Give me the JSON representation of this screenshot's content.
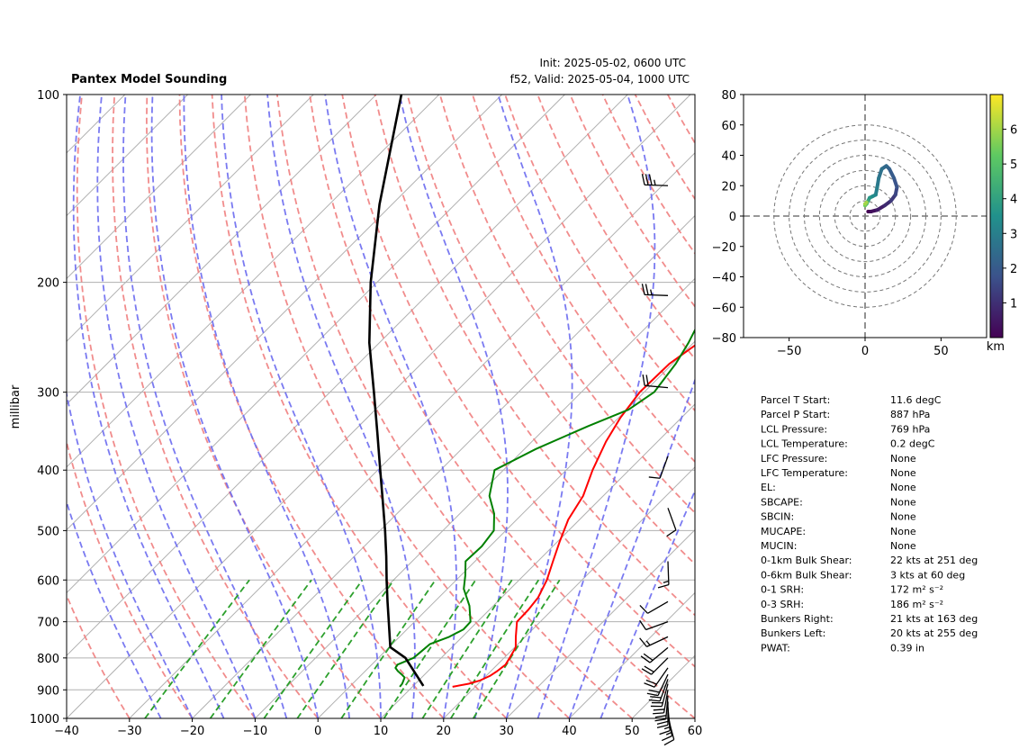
{
  "header": {
    "title": "Pantex Model Sounding",
    "init": "Init: 2025-05-02, 0600 UTC",
    "valid": "f52, Valid: 2025-05-04, 1000 UTC"
  },
  "colors": {
    "temperature": "#ff0000",
    "dewpoint": "#008000",
    "parcel": "#000000",
    "dry_adiabat": "#f08080",
    "moist_adiabat": "#6b6bf0",
    "mixing_ratio": "#2ca02c",
    "isotherm": "#b0b0b0"
  },
  "chart_data": [
    {
      "type": "line",
      "chart": "skew-t log-p sounding",
      "ylabel": "millibar",
      "xlim": [
        -40,
        60
      ],
      "ylim": [
        1000,
        100
      ],
      "y_scale": "log",
      "x_ticks": [
        "−40",
        "−30",
        "−20",
        "−10",
        "0",
        "10",
        "20",
        "30",
        "40",
        "50",
        "60"
      ],
      "y_ticks": [
        "100",
        "200",
        "300",
        "400",
        "500",
        "600",
        "700",
        "800",
        "900",
        "1000"
      ],
      "grid": true,
      "series": [
        {
          "id": "temperature",
          "points": [
            [
              890,
              16.4
            ],
            [
              880,
              18.5
            ],
            [
              870,
              19.7
            ],
            [
              855,
              20.6
            ],
            [
              840,
              21.0
            ],
            [
              820,
              21.3
            ],
            [
              800,
              20.9
            ],
            [
              770,
              20.2
            ],
            [
              740,
              18.5
            ],
            [
              700,
              16.3
            ],
            [
              670,
              16.2
            ],
            [
              640,
              15.8
            ],
            [
              600,
              14.4
            ],
            [
              560,
              12.4
            ],
            [
              520,
              10.3
            ],
            [
              480,
              8.2
            ],
            [
              440,
              6.8
            ],
            [
              400,
              4.2
            ],
            [
              360,
              1.8
            ],
            [
              330,
              0.3
            ],
            [
              300,
              -0.7
            ],
            [
              270,
              -0.5
            ],
            [
              250,
              0.8
            ],
            [
              220,
              3.9
            ],
            [
              200,
              7.3
            ],
            [
              180,
              11.0
            ],
            [
              160,
              15.9
            ],
            [
              140,
              21.7
            ],
            [
              120,
              29.7
            ],
            [
              100,
              39.3
            ]
          ]
        },
        {
          "id": "dewpoint",
          "points": [
            [
              890,
              8.0
            ],
            [
              880,
              7.9
            ],
            [
              860,
              7.3
            ],
            [
              850,
              6.3
            ],
            [
              840,
              5.2
            ],
            [
              830,
              4.3
            ],
            [
              820,
              4.1
            ],
            [
              800,
              5.6
            ],
            [
              780,
              5.8
            ],
            [
              760,
              6.0
            ],
            [
              740,
              7.9
            ],
            [
              720,
              9.0
            ],
            [
              700,
              8.9
            ],
            [
              660,
              6.2
            ],
            [
              620,
              2.6
            ],
            [
              590,
              0.7
            ],
            [
              560,
              -1.5
            ],
            [
              530,
              -1.3
            ],
            [
              500,
              -1.9
            ],
            [
              470,
              -4.5
            ],
            [
              440,
              -8.1
            ],
            [
              400,
              -11.4
            ],
            [
              370,
              -8.2
            ],
            [
              340,
              -3.5
            ],
            [
              320,
              0.3
            ],
            [
              300,
              1.6
            ],
            [
              270,
              0.5
            ],
            [
              250,
              -0.8
            ],
            [
              220,
              -3.5
            ],
            [
              200,
              -3.6
            ],
            [
              180,
              -4.0
            ],
            [
              160,
              -2.1
            ],
            [
              140,
              0.6
            ],
            [
              120,
              4.8
            ],
            [
              100,
              10.0
            ]
          ]
        },
        {
          "id": "parcel",
          "points": [
            [
              887,
              11.6
            ],
            [
              850,
              8.6
            ],
            [
              800,
              4.3
            ],
            [
              769,
              0.2
            ],
            [
              700,
              -4.1
            ],
            [
              650,
              -7.5
            ],
            [
              600,
              -11.1
            ],
            [
              550,
              -14.9
            ],
            [
              500,
              -19.2
            ],
            [
              450,
              -24.1
            ],
            [
              400,
              -29.6
            ],
            [
              350,
              -35.8
            ],
            [
              300,
              -43.0
            ],
            [
              250,
              -51.6
            ],
            [
              200,
              -61.0
            ],
            [
              150,
              -72.0
            ],
            [
              100,
              -86.0
            ]
          ]
        }
      ],
      "wind_barbs": [
        {
          "p": 140,
          "dir": 272,
          "spd": 35
        },
        {
          "p": 210,
          "dir": 272,
          "spd": 25
        },
        {
          "p": 295,
          "dir": 275,
          "spd": 20
        },
        {
          "p": 380,
          "dir": 200,
          "spd": 12
        },
        {
          "p": 460,
          "dir": 160,
          "spd": 10
        },
        {
          "p": 560,
          "dir": 178,
          "spd": 15
        },
        {
          "p": 650,
          "dir": 240,
          "spd": 10
        },
        {
          "p": 700,
          "dir": 250,
          "spd": 12
        },
        {
          "p": 740,
          "dir": 245,
          "spd": 15
        },
        {
          "p": 770,
          "dir": 230,
          "spd": 20
        },
        {
          "p": 800,
          "dir": 225,
          "spd": 20
        },
        {
          "p": 830,
          "dir": 215,
          "spd": 18
        },
        {
          "p": 850,
          "dir": 205,
          "spd": 20
        },
        {
          "p": 865,
          "dir": 200,
          "spd": 22
        },
        {
          "p": 880,
          "dir": 195,
          "spd": 22
        },
        {
          "p": 900,
          "dir": 190,
          "spd": 20
        },
        {
          "p": 920,
          "dir": 185,
          "spd": 20
        },
        {
          "p": 940,
          "dir": 180,
          "spd": 18
        },
        {
          "p": 960,
          "dir": 175,
          "spd": 15
        },
        {
          "p": 980,
          "dir": 170,
          "spd": 15
        },
        {
          "p": 995,
          "dir": 165,
          "spd": 12
        }
      ]
    },
    {
      "type": "scatter",
      "chart": "hodograph",
      "xlim": [
        -80,
        80
      ],
      "ylim": [
        -80,
        80
      ],
      "x_ticks": [
        "−50",
        "0",
        "50"
      ],
      "y_ticks": [
        "80",
        "60",
        "40",
        "20",
        "0",
        "−20",
        "−40",
        "−60",
        "−80"
      ],
      "colorbar_label": "km",
      "colorbar_ticks": [
        "1",
        "2",
        "3",
        "4",
        "5",
        "6"
      ],
      "colorbar_range": [
        0,
        7
      ],
      "rings": [
        10,
        20,
        30,
        40,
        50,
        60
      ],
      "points": [
        [
          2,
          3,
          0.0
        ],
        [
          4,
          3,
          0.3
        ],
        [
          8,
          4,
          0.6
        ],
        [
          13,
          7,
          0.9
        ],
        [
          17,
          10,
          1.2
        ],
        [
          20,
          14,
          1.5
        ],
        [
          21,
          19,
          1.8
        ],
        [
          19,
          25,
          2.0
        ],
        [
          16,
          31,
          2.2
        ],
        [
          14,
          33,
          2.4
        ],
        [
          11,
          31,
          2.6
        ],
        [
          9,
          25,
          2.8
        ],
        [
          8,
          19,
          3.0
        ],
        [
          7,
          14,
          3.2
        ],
        [
          5,
          13,
          3.4
        ],
        [
          3,
          12,
          3.7
        ],
        [
          2,
          10,
          4.2
        ],
        [
          1,
          8,
          4.8
        ],
        [
          0,
          7,
          5.4
        ],
        [
          0,
          8,
          6.0
        ],
        [
          1,
          9,
          6.5
        ]
      ]
    }
  ],
  "parameters": [
    {
      "label": "Parcel T Start:",
      "value": "11.6 degC"
    },
    {
      "label": "Parcel P Start:",
      "value": "887 hPa"
    },
    {
      "label": "LCL Pressure:",
      "value": "769 hPa"
    },
    {
      "label": "LCL Temperature:",
      "value": "0.2 degC"
    },
    {
      "label": "LFC Pressure:",
      "value": "None"
    },
    {
      "label": "LFC Temperature:",
      "value": "None"
    },
    {
      "label": "EL:",
      "value": "None"
    },
    {
      "label": "SBCAPE:",
      "value": "None"
    },
    {
      "label": "SBCIN:",
      "value": "None"
    },
    {
      "label": "MUCAPE:",
      "value": "None"
    },
    {
      "label": "MUCIN:",
      "value": "None"
    },
    {
      "label": "0-1km Bulk Shear:",
      "value": "22 kts at 251 deg"
    },
    {
      "label": "0-6km Bulk Shear:",
      "value": "3 kts at 60 deg"
    },
    {
      "label": "0-1 SRH:",
      "value": "172 m² s⁻²"
    },
    {
      "label": "0-3 SRH:",
      "value": "186 m² s⁻²"
    },
    {
      "label": "Bunkers Right:",
      "value": "21 kts at 163 deg"
    },
    {
      "label": "Bunkers Left:",
      "value": "20 kts at 255 deg"
    },
    {
      "label": "PWAT:",
      "value": "0.39 in"
    }
  ]
}
